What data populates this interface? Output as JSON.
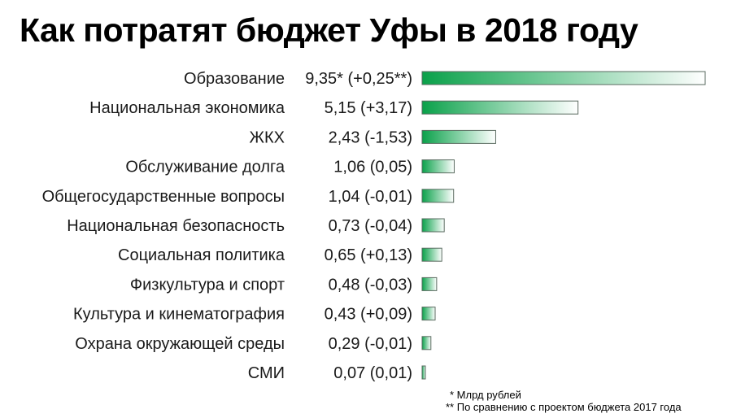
{
  "title": "Как потратят бюджет Уфы в 2018 году",
  "accent_color": "#0aa14a",
  "footnotes": [
    "* Млрд рублей",
    "** По сравнению с проектом бюджета 2017 года"
  ],
  "chart_data": {
    "type": "bar",
    "orientation": "horizontal",
    "title": "Как потратят бюджет Уфы в 2018 году",
    "categories": [
      "Образование",
      "Национальная экономика",
      "ЖКХ",
      "Обслуживание долга",
      "Общегосударственные вопросы",
      "Национальная безопасность",
      "Социальная политика",
      "Физкультура и спорт",
      "Культура и кинематография",
      "Охрана окружающей среды",
      "СМИ"
    ],
    "values": [
      9.35,
      5.15,
      2.43,
      1.06,
      1.04,
      0.73,
      0.65,
      0.48,
      0.43,
      0.29,
      0.07
    ],
    "changes": [
      0.25,
      3.17,
      -1.53,
      0.05,
      -0.01,
      -0.04,
      0.13,
      -0.03,
      0.09,
      -0.01,
      0.01
    ],
    "value_labels": [
      "9,35* (+0,25**)",
      "5,15 (+3,17)",
      "2,43 (-1,53)",
      "1,06 (0,05)",
      "1,04 (-0,01)",
      "0,73 (-0,04)",
      "0,65 (+0,13)",
      "0,48 (-0,03)",
      "0,43 (+0,09)",
      "0,29 (-0,01)",
      "0,07 (0,01)"
    ],
    "xlim": [
      0,
      9.35
    ],
    "grid": false,
    "bar_color": "#0aa14a"
  }
}
